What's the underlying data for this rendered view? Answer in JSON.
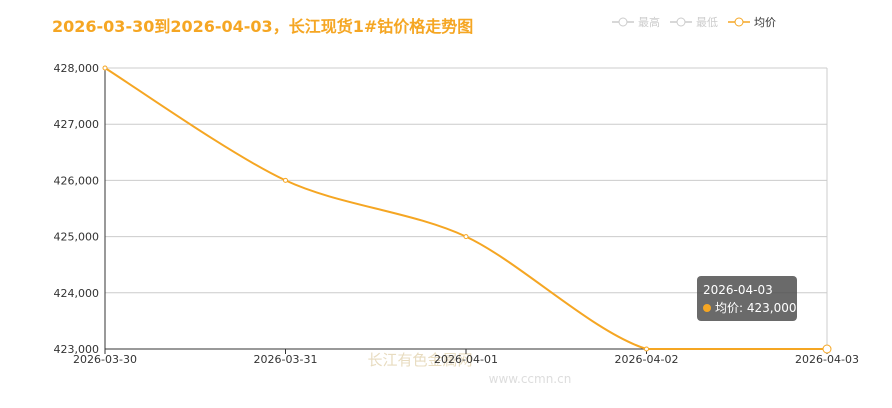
{
  "chart_data": {
    "type": "line",
    "title": "2026-03-30到2026-04-03，长江现货1#钴价格走势图",
    "title_color": "#f5a623",
    "categories": [
      "2026-03-30",
      "2026-03-31",
      "2026-04-01",
      "2026-04-02",
      "2026-04-03"
    ],
    "series": [
      {
        "name": "均价",
        "color": "#f5a623",
        "values": [
          428000,
          426000,
          425000,
          423000,
          423000
        ]
      }
    ],
    "legend": [
      {
        "name": "最高",
        "color": "#cccccc"
      },
      {
        "name": "最低",
        "color": "#cccccc"
      },
      {
        "name": "均价",
        "color": "#f5a623"
      }
    ],
    "ylim": [
      423000,
      428000
    ],
    "yticks": [
      {
        "value": 423000,
        "label": "423,000"
      },
      {
        "value": 424000,
        "label": "424,000"
      },
      {
        "value": 425000,
        "label": "425,000"
      },
      {
        "value": 426000,
        "label": "426,000"
      },
      {
        "value": 427000,
        "label": "427,000"
      },
      {
        "value": 428000,
        "label": "428,000"
      }
    ],
    "grid": true
  },
  "tooltip": {
    "title": "2026-04-03",
    "text": "均价: 423,000"
  },
  "watermark": [
    "长江有色金属网",
    "www.ccmn.cn"
  ]
}
